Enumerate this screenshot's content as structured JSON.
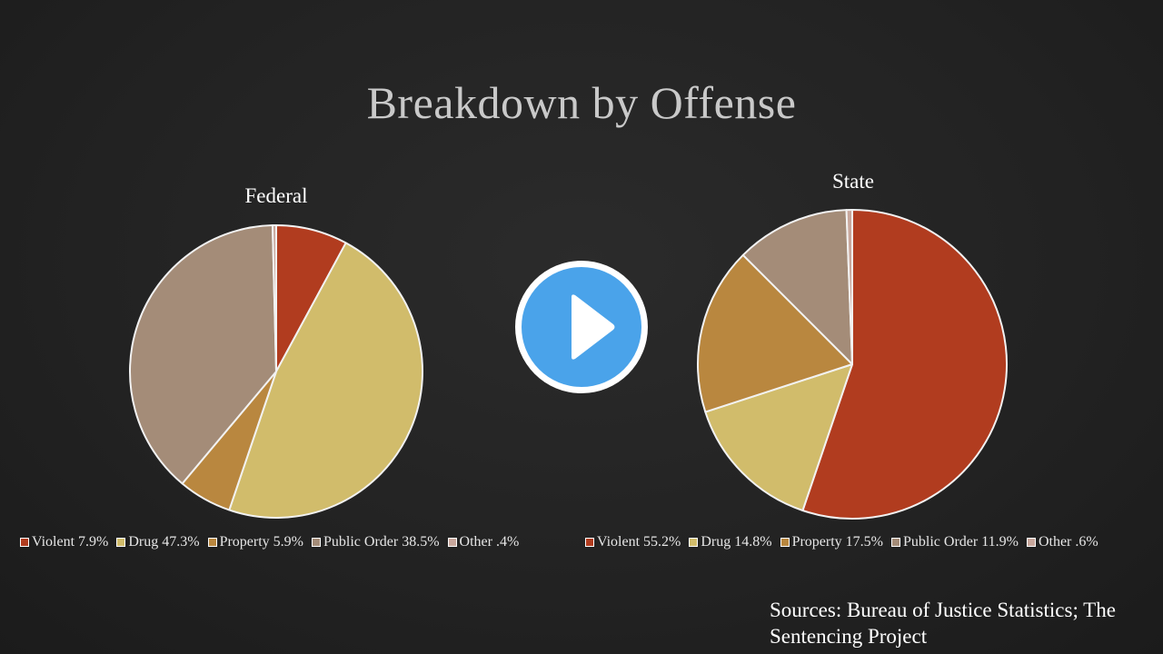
{
  "slide": {
    "title": "Breakdown by Offense",
    "sources": "Sources: Bureau of Justice Statistics; The Sentencing Project"
  },
  "colors": {
    "violent": "#b13c1f",
    "drug": "#d1bc6b",
    "property": "#b9873f",
    "public_order": "#a48c78",
    "other": "#c8a79c",
    "play_blue": "#4aa3ea"
  },
  "chart_data": [
    {
      "type": "pie",
      "title": "Federal",
      "categories": [
        "Violent",
        "Drug",
        "Property",
        "Public Order",
        "Other"
      ],
      "values": [
        7.9,
        47.3,
        5.9,
        38.5,
        0.4
      ],
      "legend_labels": [
        "Violent 7.9%",
        "Drug 47.3%",
        "Property 5.9%",
        "Public Order 38.5%",
        "Other .4%"
      ],
      "legend_position": "bottom"
    },
    {
      "type": "pie",
      "title": "State",
      "categories": [
        "Violent",
        "Drug",
        "Property",
        "Public Order",
        "Other"
      ],
      "values": [
        55.2,
        14.8,
        17.5,
        11.9,
        0.6
      ],
      "legend_labels": [
        "Violent 55.2%",
        "Drug 14.8%",
        "Property 17.5%",
        "Public Order 11.9%",
        "Other .6%"
      ],
      "legend_position": "bottom"
    }
  ],
  "controls": {
    "play_icon": "play-icon"
  }
}
